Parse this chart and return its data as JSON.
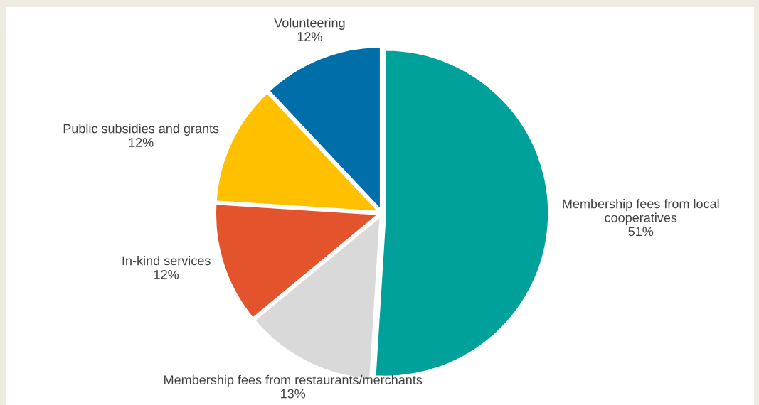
{
  "chart_data": {
    "type": "pie",
    "categories": [
      "Membership fees from local\ncooperatives",
      "Membership fees from restaurants/merchants",
      "In-kind services",
      "Public subsidies and grants",
      "Volunteering"
    ],
    "values": [
      51,
      13,
      12,
      12,
      12
    ],
    "value_labels": [
      "51%",
      "13%",
      "12%",
      "12%",
      "12%"
    ],
    "colors": [
      "#00a19a",
      "#d9d9d9",
      "#e3542c",
      "#ffc000",
      "#006ea8"
    ]
  }
}
